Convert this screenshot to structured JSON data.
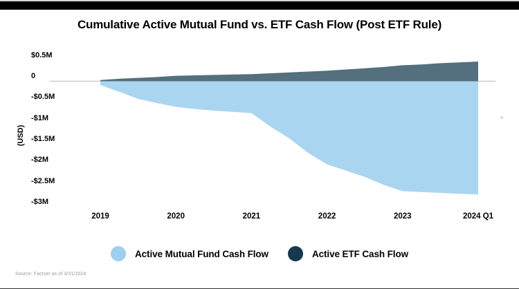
{
  "chart_data": {
    "type": "area",
    "title": "Cumulative Active Mutual Fund vs. ETF Cash Flow (Post ETF Rule)",
    "ylabel": "(USD)",
    "unit": "millions USD (cumulative)",
    "x_tick_labels": [
      "2019",
      "2020",
      "2021",
      "2022",
      "2023",
      "2024 Q1"
    ],
    "x_points_per_interval": 4,
    "y_ticks": [
      {
        "label": "$0.5M",
        "value": 0.5
      },
      {
        "label": "0",
        "value": 0
      },
      {
        "label": "-$0.5M",
        "value": -0.5
      },
      {
        "label": "-$1M",
        "value": -1
      },
      {
        "label": "-$1.5M",
        "value": -1.5
      },
      {
        "label": "-$2M",
        "value": -2
      },
      {
        "label": "-$2.5M",
        "value": -2.5
      },
      {
        "label": "-$3M",
        "value": -3
      }
    ],
    "ylim": [
      -3,
      0.5
    ],
    "grid": false,
    "zero_line_color": "#c9cdd0",
    "legend_position": "bottom",
    "series": [
      {
        "name": "Active Mutual Fund Cash Flow",
        "area_color": "#aad5f0",
        "legend_dot_color": "#9fcfee",
        "values": [
          -0.09,
          -0.25,
          -0.42,
          -0.52,
          -0.61,
          -0.66,
          -0.7,
          -0.73,
          -0.76,
          -1.08,
          -1.36,
          -1.71,
          -1.98,
          -2.13,
          -2.28,
          -2.47,
          -2.62,
          -2.64,
          -2.66,
          -2.68,
          -2.7
        ]
      },
      {
        "name": "Active ETF Cash Flow",
        "area_color": "#546f7e",
        "legend_dot_color": "#17384e",
        "values": [
          0.03,
          0.06,
          0.08,
          0.1,
          0.13,
          0.14,
          0.15,
          0.16,
          0.17,
          0.19,
          0.21,
          0.23,
          0.25,
          0.28,
          0.31,
          0.34,
          0.38,
          0.4,
          0.43,
          0.45,
          0.47
        ]
      }
    ]
  },
  "source_note": "Source: Factset as of 3/31/2024"
}
